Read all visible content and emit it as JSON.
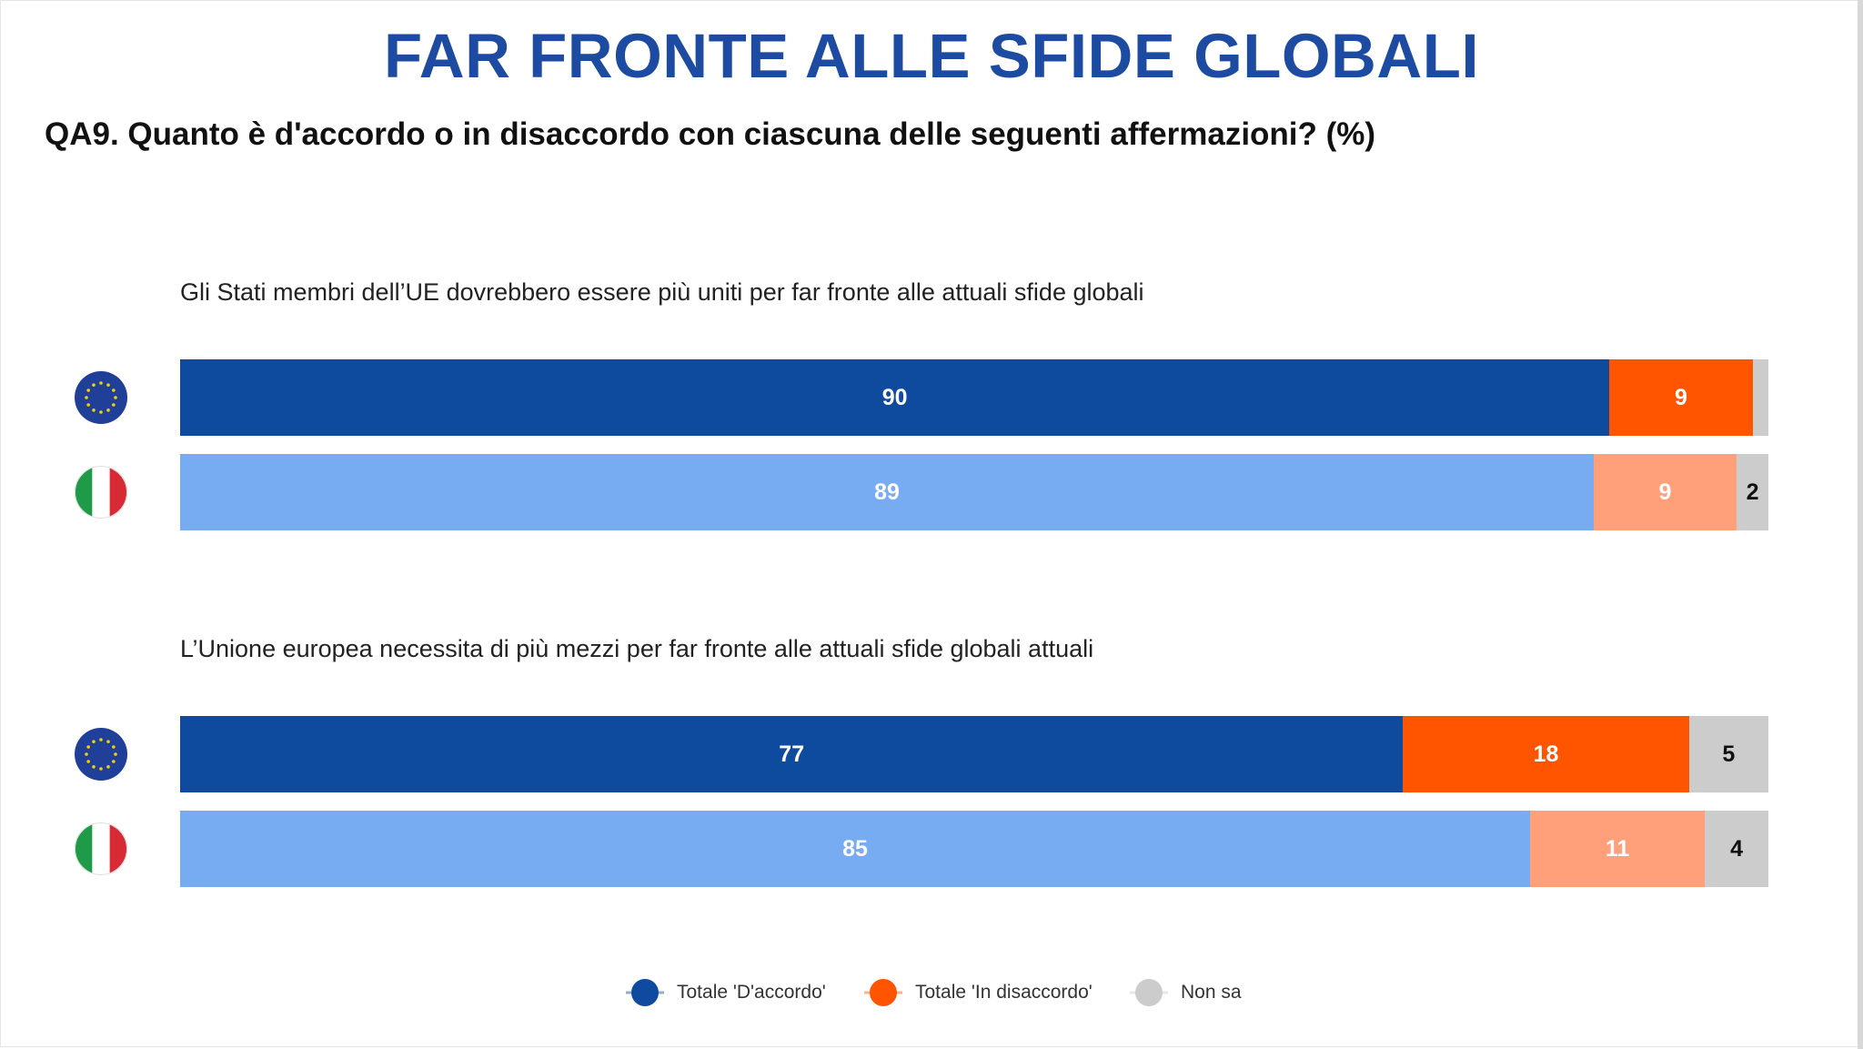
{
  "title": "FAR FRONTE ALLE SFIDE GLOBALI",
  "question": "QA9. Quanto è d'accordo o in disaccordo con ciascuna delle seguenti affermazioni?  (%)",
  "icons": {
    "eu": "eu-flag-icon",
    "it": "italy-flag-icon"
  },
  "colors": {
    "title": "#1c4ba1",
    "eu_agree": "#0e4b9f",
    "eu_disagree": "#ff5500",
    "it_agree": "#78acf2",
    "it_disagree": "#ffa07a",
    "dont_know": "#cccccc"
  },
  "legend": [
    {
      "label": "Totale 'D'accordo'",
      "color": "#0e4b9f"
    },
    {
      "label": "Totale 'In disaccordo'",
      "color": "#ff5500"
    },
    {
      "label": "Non sa",
      "color": "#cccccc"
    }
  ],
  "chart_data": {
    "type": "bar",
    "orientation": "horizontal-stacked",
    "unit": "%",
    "xlim": [
      0,
      100
    ],
    "series_names": [
      "Totale 'D'accordo'",
      "Totale 'In disaccordo'",
      "Non sa"
    ],
    "groups": [
      {
        "statement": "Gli Stati membri dell’UE dovrebbero essere più uniti per far fronte alle attuali sfide globali",
        "rows": [
          {
            "flag": "eu",
            "values": [
              90,
              9,
              1
            ],
            "labels": [
              "90",
              "9",
              ""
            ]
          },
          {
            "flag": "it",
            "values": [
              89,
              9,
              2
            ],
            "labels": [
              "89",
              "9",
              "2"
            ]
          }
        ]
      },
      {
        "statement": "L’Unione europea necessita di più mezzi per far fronte alle attuali sfide globali attuali",
        "rows": [
          {
            "flag": "eu",
            "values": [
              77,
              18,
              5
            ],
            "labels": [
              "77",
              "18",
              "5"
            ]
          },
          {
            "flag": "it",
            "values": [
              85,
              11,
              4
            ],
            "labels": [
              "85",
              "11",
              "4"
            ]
          }
        ]
      }
    ]
  }
}
